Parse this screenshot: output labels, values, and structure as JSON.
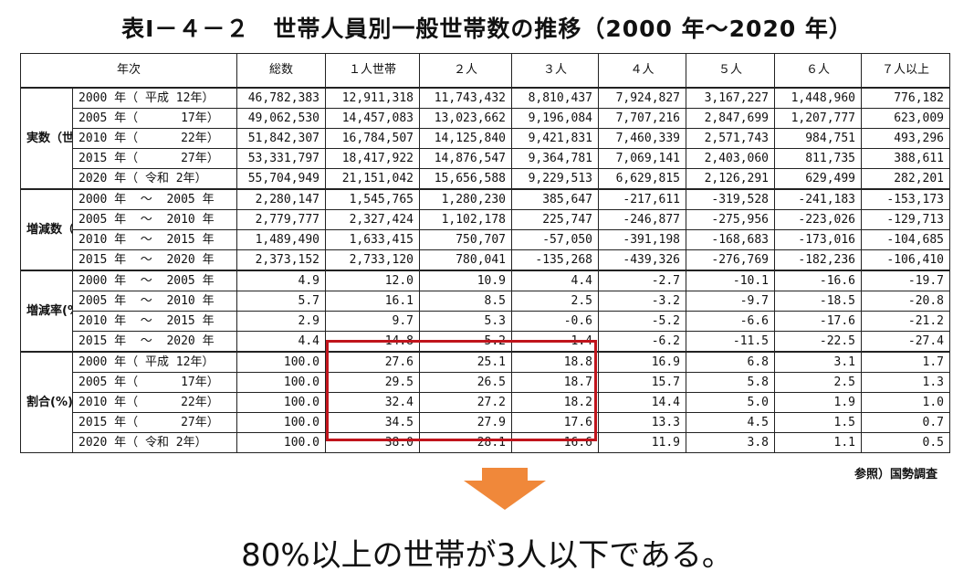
{
  "title": "表Ⅰ－４－２　世帯人員別一般世帯数の推移（2000 年～2020 年）",
  "headers": [
    "年次",
    "総数",
    "１人世帯",
    "２人",
    "３人",
    "４人",
    "５人",
    "６人",
    "７人以上"
  ],
  "groups": [
    {
      "label": "実数（世帯）",
      "rows": [
        {
          "year": "2000 年（ 平成 12年）",
          "values": [
            "46,782,383",
            "12,911,318",
            "11,743,432",
            "8,810,437",
            "7,924,827",
            "3,167,227",
            "1,448,960",
            "776,182"
          ]
        },
        {
          "year": "2005 年（      17年）",
          "values": [
            "49,062,530",
            "14,457,083",
            "13,023,662",
            "9,196,084",
            "7,707,216",
            "2,847,699",
            "1,207,777",
            "623,009"
          ]
        },
        {
          "year": "2010 年（      22年）",
          "values": [
            "51,842,307",
            "16,784,507",
            "14,125,840",
            "9,421,831",
            "7,460,339",
            "2,571,743",
            "984,751",
            "493,296"
          ]
        },
        {
          "year": "2015 年（      27年）",
          "values": [
            "53,331,797",
            "18,417,922",
            "14,876,547",
            "9,364,781",
            "7,069,141",
            "2,403,060",
            "811,735",
            "388,611"
          ]
        },
        {
          "year": "2020 年（ 令和 2年）",
          "values": [
            "55,704,949",
            "21,151,042",
            "15,656,588",
            "9,229,513",
            "6,629,815",
            "2,126,291",
            "629,499",
            "282,201"
          ]
        }
      ]
    },
    {
      "label": "増減数（世帯）",
      "rows": [
        {
          "year": "2000 年  ～  2005 年",
          "values": [
            "2,280,147",
            "1,545,765",
            "1,280,230",
            "385,647",
            "-217,611",
            "-319,528",
            "-241,183",
            "-153,173"
          ]
        },
        {
          "year": "2005 年  ～  2010 年",
          "values": [
            "2,779,777",
            "2,327,424",
            "1,102,178",
            "225,747",
            "-246,877",
            "-275,956",
            "-223,026",
            "-129,713"
          ]
        },
        {
          "year": "2010 年  ～  2015 年",
          "values": [
            "1,489,490",
            "1,633,415",
            "750,707",
            "-57,050",
            "-391,198",
            "-168,683",
            "-173,016",
            "-104,685"
          ]
        },
        {
          "year": "2015 年  ～  2020 年",
          "values": [
            "2,373,152",
            "2,733,120",
            "780,041",
            "-135,268",
            "-439,326",
            "-276,769",
            "-182,236",
            "-106,410"
          ]
        }
      ]
    },
    {
      "label": "増減率(%)",
      "rows": [
        {
          "year": "2000 年  ～  2005 年",
          "values": [
            "4.9",
            "12.0",
            "10.9",
            "4.4",
            "-2.7",
            "-10.1",
            "-16.6",
            "-19.7"
          ]
        },
        {
          "year": "2005 年  ～  2010 年",
          "values": [
            "5.7",
            "16.1",
            "8.5",
            "2.5",
            "-3.2",
            "-9.7",
            "-18.5",
            "-20.8"
          ]
        },
        {
          "year": "2010 年  ～  2015 年",
          "values": [
            "2.9",
            "9.7",
            "5.3",
            "-0.6",
            "-5.2",
            "-6.6",
            "-17.6",
            "-21.2"
          ]
        },
        {
          "year": "2015 年  ～  2020 年",
          "values": [
            "4.4",
            "14.8",
            "5.2",
            "-1.4",
            "-6.2",
            "-11.5",
            "-22.5",
            "-27.4"
          ]
        }
      ]
    },
    {
      "label": "割合(%)",
      "rows": [
        {
          "year": "2000 年（ 平成 12年）",
          "values": [
            "100.0",
            "27.6",
            "25.1",
            "18.8",
            "16.9",
            "6.8",
            "3.1",
            "1.7"
          ]
        },
        {
          "year": "2005 年（      17年）",
          "values": [
            "100.0",
            "29.5",
            "26.5",
            "18.7",
            "15.7",
            "5.8",
            "2.5",
            "1.3"
          ]
        },
        {
          "year": "2010 年（      22年）",
          "values": [
            "100.0",
            "32.4",
            "27.2",
            "18.2",
            "14.4",
            "5.0",
            "1.9",
            "1.0"
          ]
        },
        {
          "year": "2015 年（      27年）",
          "values": [
            "100.0",
            "34.5",
            "27.9",
            "17.6",
            "13.3",
            "4.5",
            "1.5",
            "0.7"
          ]
        },
        {
          "year": "2020 年（ 令和 2年）",
          "values": [
            "100.0",
            "38.0",
            "28.1",
            "16.6",
            "11.9",
            "3.8",
            "1.1",
            "0.5"
          ]
        }
      ]
    }
  ],
  "source": "参照）国勢調査",
  "conclusion": "80%以上の世帯が3人以下である。",
  "colors": {
    "highlight": "#c0141c",
    "arrow": "#f0883a"
  },
  "icons": {
    "arrow": "down-arrow-icon"
  }
}
